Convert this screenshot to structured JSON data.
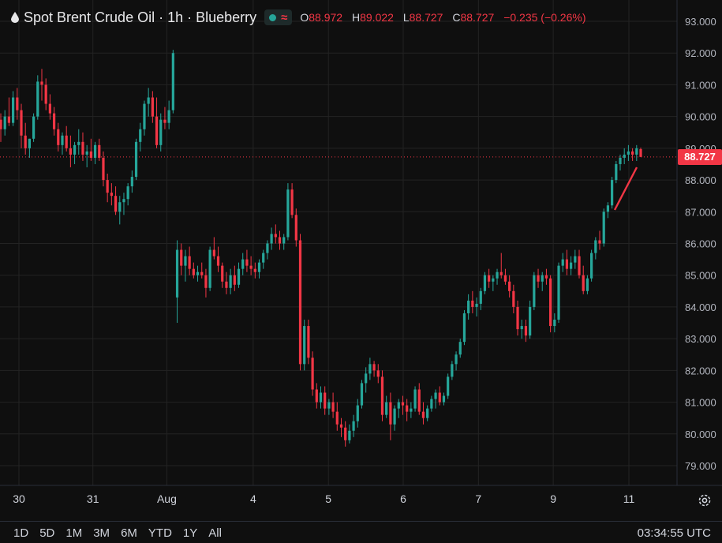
{
  "header": {
    "title": "Spot Brent Crude Oil · 1h · Blueberry",
    "ohlc": [
      {
        "label": "O",
        "value": "88.972"
      },
      {
        "label": "H",
        "value": "89.022"
      },
      {
        "label": "L",
        "value": "88.727"
      },
      {
        "label": "C",
        "value": "88.727"
      }
    ],
    "change": "−0.235 (−0.26%)"
  },
  "last_price_label": "88.727",
  "range_buttons": [
    "1D",
    "5D",
    "1M",
    "3M",
    "6M",
    "YTD",
    "1Y",
    "All"
  ],
  "clock": "03:34:55 UTC",
  "colors": {
    "up": "#26a69a",
    "down": "#f23645",
    "background": "#0f0f0f",
    "grid": "#232323"
  },
  "chart_data": {
    "type": "candlestick",
    "title": "Spot Brent Crude Oil",
    "interval": "1h",
    "ylim": [
      78.6,
      93.5
    ],
    "y_ticks": [
      "93.000",
      "92.000",
      "91.000",
      "90.000",
      "89.000",
      "88.000",
      "87.000",
      "86.000",
      "85.000",
      "84.000",
      "83.000",
      "82.000",
      "81.000",
      "80.000",
      "79.000"
    ],
    "x_ticks": [
      {
        "label": "30",
        "x": 0
      },
      {
        "label": "31",
        "x": 17.3
      },
      {
        "label": "Aug",
        "x": 34.6
      },
      {
        "label": "4",
        "x": 54.8
      },
      {
        "label": "5",
        "x": 72.4
      },
      {
        "label": "6",
        "x": 89.9
      },
      {
        "label": "7",
        "x": 107.5
      },
      {
        "label": "9",
        "x": 125
      },
      {
        "label": "11",
        "x": 142.7
      }
    ],
    "last_price": 88.727,
    "grid": true,
    "candles": [
      [
        89.9,
        90.1,
        89.2,
        89.6
      ],
      [
        89.6,
        90.2,
        89.4,
        90.0
      ],
      [
        90.0,
        90.6,
        89.7,
        89.8
      ],
      [
        89.8,
        90.8,
        89.7,
        90.6
      ],
      [
        90.6,
        90.9,
        89.9,
        90.2
      ],
      [
        90.2,
        90.4,
        89.0,
        89.4
      ],
      [
        89.4,
        89.8,
        88.8,
        89.0
      ],
      [
        89.0,
        89.3,
        88.7,
        89.3
      ],
      [
        89.3,
        90.1,
        89.2,
        90.0
      ],
      [
        90.0,
        91.3,
        89.9,
        91.1
      ],
      [
        91.1,
        91.5,
        90.5,
        91.0
      ],
      [
        91.0,
        91.2,
        90.2,
        90.4
      ],
      [
        90.4,
        90.7,
        89.9,
        90.1
      ],
      [
        90.1,
        90.3,
        89.4,
        89.6
      ],
      [
        89.6,
        89.8,
        88.9,
        89.1
      ],
      [
        89.1,
        89.5,
        88.8,
        89.4
      ],
      [
        89.4,
        89.7,
        88.9,
        89.0
      ],
      [
        89.0,
        89.4,
        88.4,
        88.8
      ],
      [
        88.8,
        89.2,
        88.5,
        89.1
      ],
      [
        89.1,
        89.6,
        88.8,
        89.2
      ],
      [
        89.2,
        89.5,
        88.6,
        88.8
      ],
      [
        88.8,
        89.1,
        88.4,
        88.9
      ],
      [
        88.9,
        89.3,
        88.6,
        88.7
      ],
      [
        88.7,
        89.2,
        88.5,
        89.1
      ],
      [
        89.1,
        89.3,
        88.6,
        88.7
      ],
      [
        88.7,
        88.9,
        87.8,
        88.0
      ],
      [
        88.0,
        88.2,
        87.3,
        87.6
      ],
      [
        87.6,
        87.9,
        87.2,
        87.5
      ],
      [
        87.5,
        87.8,
        86.9,
        87.0
      ],
      [
        87.0,
        87.5,
        86.6,
        87.3
      ],
      [
        87.3,
        87.6,
        86.9,
        87.4
      ],
      [
        87.4,
        87.9,
        87.2,
        87.8
      ],
      [
        87.8,
        88.3,
        87.6,
        88.1
      ],
      [
        88.1,
        89.3,
        88.0,
        89.2
      ],
      [
        89.2,
        89.8,
        88.9,
        89.6
      ],
      [
        89.6,
        90.5,
        89.4,
        90.4
      ],
      [
        90.4,
        90.9,
        90.0,
        90.6
      ],
      [
        90.6,
        90.8,
        89.8,
        90.0
      ],
      [
        90.0,
        90.6,
        89.0,
        89.1
      ],
      [
        89.1,
        90.1,
        88.9,
        89.9
      ],
      [
        89.9,
        90.3,
        89.6,
        89.8
      ],
      [
        89.8,
        90.5,
        89.6,
        90.2
      ],
      [
        90.2,
        92.1,
        90.1,
        92.0
      ],
      [
        84.3,
        86.1,
        83.5,
        85.8
      ],
      [
        85.8,
        86.0,
        85.0,
        85.3
      ],
      [
        85.3,
        85.8,
        84.8,
        85.6
      ],
      [
        85.6,
        85.9,
        85.0,
        85.2
      ],
      [
        85.2,
        85.4,
        84.9,
        85.0
      ],
      [
        85.0,
        85.3,
        84.8,
        85.1
      ],
      [
        85.1,
        85.4,
        84.9,
        85.0
      ],
      [
        85.0,
        85.2,
        84.3,
        84.6
      ],
      [
        84.6,
        85.9,
        84.5,
        85.8
      ],
      [
        85.8,
        86.2,
        85.5,
        85.6
      ],
      [
        85.6,
        85.9,
        85.1,
        85.3
      ],
      [
        85.3,
        85.4,
        84.6,
        84.8
      ],
      [
        84.8,
        85.1,
        84.4,
        84.6
      ],
      [
        84.6,
        85.2,
        84.4,
        85.0
      ],
      [
        85.0,
        85.3,
        84.5,
        84.7
      ],
      [
        84.7,
        85.4,
        84.6,
        85.2
      ],
      [
        85.2,
        85.7,
        85.0,
        85.5
      ],
      [
        85.5,
        85.8,
        85.1,
        85.3
      ],
      [
        85.3,
        85.6,
        85.0,
        85.2
      ],
      [
        85.2,
        85.4,
        84.9,
        85.1
      ],
      [
        85.1,
        85.5,
        84.9,
        85.4
      ],
      [
        85.4,
        85.8,
        85.2,
        85.7
      ],
      [
        85.7,
        86.1,
        85.5,
        86.0
      ],
      [
        86.0,
        86.5,
        85.8,
        86.3
      ],
      [
        86.3,
        86.6,
        86.0,
        86.2
      ],
      [
        86.2,
        86.4,
        85.8,
        86.0
      ],
      [
        86.0,
        86.3,
        85.8,
        86.2
      ],
      [
        86.2,
        87.9,
        86.1,
        87.7
      ],
      [
        87.7,
        87.9,
        86.8,
        86.9
      ],
      [
        86.9,
        87.1,
        85.9,
        86.1
      ],
      [
        86.1,
        86.3,
        82.0,
        82.2
      ],
      [
        82.2,
        83.6,
        82.0,
        83.4
      ],
      [
        83.4,
        83.6,
        82.2,
        82.4
      ],
      [
        82.4,
        82.6,
        81.2,
        81.4
      ],
      [
        81.4,
        81.6,
        80.8,
        81.0
      ],
      [
        81.0,
        81.5,
        80.8,
        81.3
      ],
      [
        81.3,
        81.5,
        80.6,
        80.8
      ],
      [
        80.8,
        81.1,
        80.6,
        81.0
      ],
      [
        81.0,
        81.3,
        80.5,
        80.7
      ],
      [
        80.7,
        81.0,
        80.1,
        80.3
      ],
      [
        80.3,
        80.5,
        79.9,
        80.2
      ],
      [
        80.2,
        80.4,
        79.6,
        79.8
      ],
      [
        79.8,
        80.3,
        79.7,
        80.1
      ],
      [
        80.1,
        80.6,
        79.9,
        80.4
      ],
      [
        80.4,
        81.1,
        80.2,
        80.9
      ],
      [
        80.9,
        81.7,
        80.8,
        81.6
      ],
      [
        81.6,
        82.1,
        81.3,
        81.9
      ],
      [
        81.9,
        82.4,
        81.7,
        82.2
      ],
      [
        82.2,
        82.3,
        81.8,
        82.0
      ],
      [
        82.0,
        82.2,
        81.6,
        81.8
      ],
      [
        81.8,
        82.0,
        80.4,
        80.6
      ],
      [
        80.6,
        81.2,
        80.5,
        81.0
      ],
      [
        81.0,
        81.3,
        79.8,
        80.3
      ],
      [
        80.3,
        80.9,
        80.1,
        80.8
      ],
      [
        80.8,
        81.1,
        80.5,
        81.0
      ],
      [
        81.0,
        81.2,
        80.6,
        80.9
      ],
      [
        80.9,
        81.1,
        80.4,
        80.7
      ],
      [
        80.7,
        81.0,
        80.5,
        80.8
      ],
      [
        80.8,
        81.5,
        80.7,
        81.4
      ],
      [
        81.4,
        81.6,
        80.6,
        80.7
      ],
      [
        80.7,
        81.0,
        80.3,
        80.5
      ],
      [
        80.5,
        80.9,
        80.4,
        80.8
      ],
      [
        80.8,
        81.2,
        80.7,
        81.1
      ],
      [
        81.1,
        81.4,
        80.8,
        81.3
      ],
      [
        81.3,
        81.5,
        80.9,
        81.0
      ],
      [
        81.0,
        81.3,
        80.9,
        81.2
      ],
      [
        81.2,
        81.9,
        81.1,
        81.8
      ],
      [
        81.8,
        82.3,
        81.7,
        82.2
      ],
      [
        82.2,
        82.6,
        82.0,
        82.5
      ],
      [
        82.5,
        83.0,
        82.4,
        82.9
      ],
      [
        82.9,
        83.9,
        82.8,
        83.8
      ],
      [
        83.8,
        84.4,
        83.6,
        84.2
      ],
      [
        84.2,
        84.5,
        83.8,
        84.0
      ],
      [
        84.0,
        84.3,
        83.7,
        84.1
      ],
      [
        84.1,
        84.6,
        83.9,
        84.5
      ],
      [
        84.5,
        85.1,
        84.4,
        85.0
      ],
      [
        85.0,
        85.2,
        84.6,
        84.8
      ],
      [
        84.8,
        85.0,
        84.5,
        84.9
      ],
      [
        84.9,
        85.2,
        84.7,
        85.1
      ],
      [
        85.1,
        85.7,
        84.9,
        85.0
      ],
      [
        85.0,
        85.2,
        84.7,
        84.8
      ],
      [
        84.8,
        85.0,
        84.3,
        84.5
      ],
      [
        84.5,
        84.7,
        83.8,
        84.0
      ],
      [
        84.0,
        84.2,
        83.1,
        83.3
      ],
      [
        83.3,
        83.6,
        83.0,
        83.4
      ],
      [
        83.4,
        83.6,
        82.9,
        83.1
      ],
      [
        83.1,
        84.2,
        83.0,
        84.0
      ],
      [
        84.0,
        85.1,
        83.9,
        85.0
      ],
      [
        85.0,
        85.2,
        84.6,
        84.8
      ],
      [
        84.8,
        85.1,
        84.5,
        85.0
      ],
      [
        85.0,
        85.2,
        84.7,
        84.9
      ],
      [
        84.9,
        85.0,
        83.2,
        83.4
      ],
      [
        83.4,
        83.8,
        83.2,
        83.6
      ],
      [
        83.6,
        85.4,
        83.5,
        85.3
      ],
      [
        85.3,
        85.7,
        85.1,
        85.5
      ],
      [
        85.5,
        85.8,
        85.0,
        85.2
      ],
      [
        85.2,
        85.6,
        85.0,
        85.4
      ],
      [
        85.4,
        85.8,
        85.2,
        85.6
      ],
      [
        85.6,
        85.8,
        84.9,
        85.0
      ],
      [
        85.0,
        85.3,
        84.4,
        84.5
      ],
      [
        84.5,
        85.0,
        84.4,
        84.9
      ],
      [
        84.9,
        85.8,
        84.8,
        85.7
      ],
      [
        85.7,
        86.2,
        85.5,
        86.1
      ],
      [
        86.1,
        86.4,
        85.8,
        86.0
      ],
      [
        86.0,
        87.1,
        85.9,
        87.0
      ],
      [
        87.0,
        87.3,
        86.8,
        87.2
      ],
      [
        87.2,
        88.1,
        87.1,
        88.0
      ],
      [
        88.0,
        88.6,
        87.9,
        88.5
      ],
      [
        88.5,
        88.8,
        88.3,
        88.7
      ],
      [
        88.7,
        89.0,
        88.5,
        88.8
      ],
      [
        88.8,
        89.1,
        88.6,
        88.9
      ],
      [
        88.9,
        89.0,
        88.6,
        88.8
      ],
      [
        88.8,
        89.1,
        88.6,
        89.0
      ],
      [
        88.972,
        89.022,
        88.727,
        88.727
      ]
    ]
  }
}
